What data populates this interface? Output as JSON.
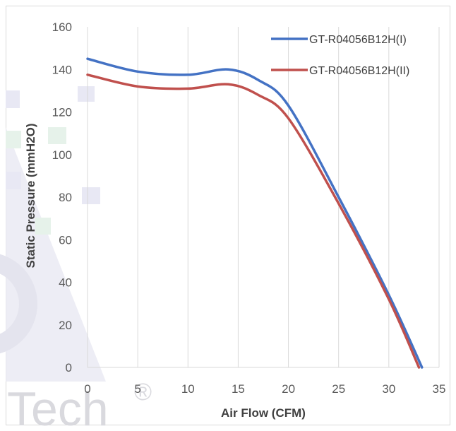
{
  "chart_data": {
    "type": "line",
    "title": "",
    "xlabel": "Air Flow (CFM)",
    "ylabel": "Static Pressure (mmH2O)",
    "xlim": [
      0,
      35
    ],
    "ylim": [
      0,
      160
    ],
    "xticks": [
      0,
      5,
      10,
      15,
      20,
      25,
      30,
      35
    ],
    "yticks": [
      0,
      20,
      40,
      60,
      80,
      100,
      120,
      140,
      160
    ],
    "grid": "vertical",
    "legend_position": "top-right",
    "series": [
      {
        "name": "GT-R04056B12H(I)",
        "color": "#4472c4",
        "points": [
          [
            0,
            145
          ],
          [
            5,
            139
          ],
          [
            10,
            137.5
          ],
          [
            14,
            140
          ],
          [
            17,
            135
          ],
          [
            20,
            123
          ],
          [
            25,
            80
          ],
          [
            30,
            34
          ],
          [
            33.3,
            0
          ]
        ]
      },
      {
        "name": "GT-R04056B12H(II)",
        "color": "#c0504d",
        "points": [
          [
            0,
            137.5
          ],
          [
            5,
            132
          ],
          [
            10,
            131
          ],
          [
            14,
            133
          ],
          [
            17,
            128
          ],
          [
            20,
            117
          ],
          [
            25,
            77
          ],
          [
            30,
            32
          ],
          [
            33.0,
            0
          ]
        ]
      }
    ]
  },
  "watermark": {
    "text": "Tech",
    "mark": "®",
    "color": "#d9d9de"
  }
}
